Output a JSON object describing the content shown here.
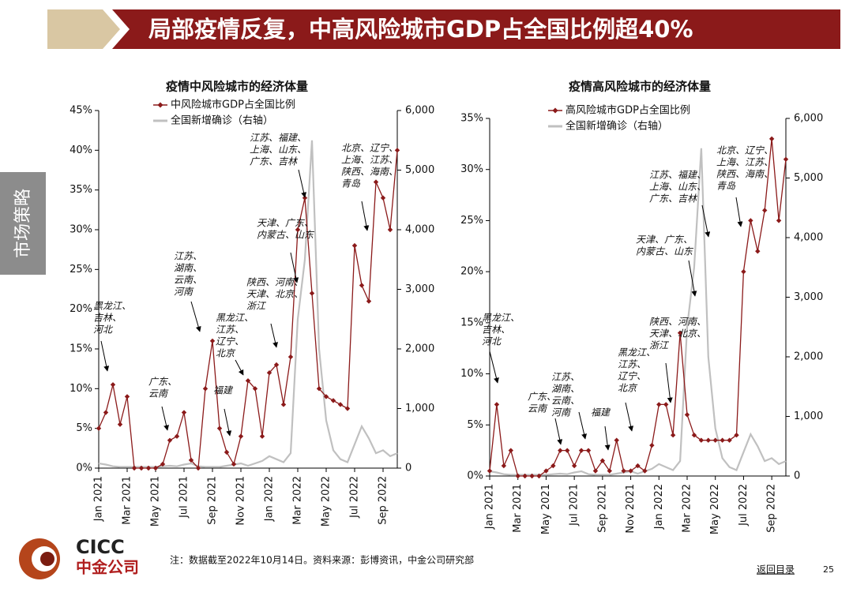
{
  "title": "局部疫情反复，中高风险城市GDP占全国比例超40%",
  "side_tab": "市场策略",
  "note": "注：数据截至2022年10月14日。资料来源：彭博资讯，中金公司研究部",
  "logo": {
    "en": "CICC",
    "zh": "中金公司"
  },
  "nav": "返回目录",
  "page": "25",
  "chart_data": [
    {
      "type": "line",
      "title": "疫情中风险城市的经济体量",
      "legend": "top-left",
      "categories": [
        "Jan 2021",
        null,
        null,
        null,
        "Mar 2021",
        null,
        null,
        null,
        "May 2021",
        null,
        null,
        null,
        "Jul 2021",
        null,
        null,
        null,
        "Sep 2021",
        null,
        null,
        null,
        "Nov 2021",
        null,
        null,
        null,
        "Jan 2022",
        null,
        null,
        null,
        "Mar 2022",
        null,
        null,
        null,
        "May 2022",
        null,
        null,
        null,
        "Jul 2022",
        null,
        null,
        null,
        "Sep 2022",
        null,
        null
      ],
      "series": [
        {
          "name": "中风险城市GDP占全国比例",
          "color": "#8b1a1a",
          "marker": "diamond",
          "values": [
            5,
            7,
            10.5,
            5.5,
            9,
            0,
            0,
            0,
            0,
            0.5,
            3.5,
            4,
            7,
            1,
            0,
            10,
            16,
            5,
            2,
            0.5,
            4,
            11,
            10,
            4,
            12,
            13,
            8,
            14,
            30,
            34,
            22,
            10,
            9,
            8.5,
            8,
            7.5,
            28,
            23,
            21,
            36,
            34,
            30,
            40
          ]
        },
        {
          "name": "全国新增确诊（右轴）",
          "color": "#c0c0c0",
          "axis": "y2",
          "values": [
            80,
            60,
            30,
            20,
            20,
            20,
            20,
            20,
            20,
            30,
            40,
            30,
            60,
            80,
            30,
            20,
            20,
            20,
            40,
            60,
            80,
            40,
            80,
            120,
            200,
            150,
            100,
            250,
            2500,
            3500,
            5500,
            2000,
            800,
            300,
            150,
            100,
            400,
            700,
            500,
            250,
            300,
            200,
            250
          ]
        }
      ],
      "ylim": [
        0,
        45
      ],
      "yticks": [
        {
          "value": 0,
          "label": "0%"
        },
        {
          "value": 5,
          "label": "5%"
        },
        {
          "value": 10,
          "label": "10%"
        },
        {
          "value": 15,
          "label": "15%"
        },
        {
          "value": 20,
          "label": "20%"
        },
        {
          "value": 25,
          "label": "25%"
        },
        {
          "value": 30,
          "label": "30%"
        },
        {
          "value": 35,
          "label": "35%"
        },
        {
          "value": 40,
          "label": "40%"
        },
        {
          "value": 45,
          "label": "45%"
        }
      ],
      "y2lim": [
        0,
        6000
      ],
      "y2ticks": [
        0,
        {
          "value": 1000,
          "label": "1,000"
        },
        {
          "value": 2000,
          "label": "2,000"
        },
        {
          "value": 3000,
          "label": "3,000"
        },
        {
          "value": 4000,
          "label": "4,000"
        },
        {
          "value": 5000,
          "label": "5,000"
        },
        {
          "value": 6000,
          "label": "6,000"
        }
      ],
      "annotations": [
        [
          "黑龙江、",
          "吉林、",
          "河北"
        ],
        [
          "广东、",
          "云南"
        ],
        [
          "江苏、",
          "湖南、",
          "云南、",
          "河南"
        ],
        [
          "福建"
        ],
        [
          "黑龙江、",
          "江苏、",
          "辽宁、",
          "北京"
        ],
        [
          "陕西、河南、",
          "天津、北京、",
          "浙江"
        ],
        [
          "江苏、福建、",
          "上海、山东、",
          "广东、吉林"
        ],
        [
          "天津、广东、",
          "内蒙古、山东"
        ],
        [
          "北京、辽宁、",
          "上海、江苏、",
          "陕西、海南、",
          "青岛"
        ]
      ]
    },
    {
      "type": "line",
      "title": "疫情高风险城市的经济体量",
      "legend": "top-left",
      "categories": [
        "Jan 2021",
        null,
        null,
        null,
        "Mar 2021",
        null,
        null,
        null,
        "May 2021",
        null,
        null,
        null,
        "Jul 2021",
        null,
        null,
        null,
        "Sep 2021",
        null,
        null,
        null,
        "Nov 2021",
        null,
        null,
        null,
        "Jan 2022",
        null,
        null,
        null,
        "Mar 2022",
        null,
        null,
        null,
        "May 2022",
        null,
        null,
        null,
        "Jul 2022",
        null,
        null,
        null,
        "Sep 2022",
        null,
        null
      ],
      "series": [
        {
          "name": "高风险城市GDP占全国比例",
          "color": "#8b1a1a",
          "marker": "diamond",
          "values": [
            0.5,
            7,
            1,
            2.5,
            0,
            0,
            0,
            0,
            0.5,
            1,
            2.5,
            2.5,
            1,
            2.5,
            2.5,
            0.5,
            1.5,
            0.5,
            3.5,
            0.5,
            0.5,
            1,
            0.5,
            3,
            7,
            7,
            4,
            14,
            6,
            4,
            3.5,
            3.5,
            3.5,
            3.5,
            3.5,
            4,
            20,
            25,
            22,
            26,
            33,
            25,
            31
          ]
        },
        {
          "name": "全国新增确诊（右轴）",
          "color": "#c0c0c0",
          "axis": "y2",
          "values": [
            80,
            60,
            30,
            20,
            20,
            20,
            20,
            20,
            20,
            30,
            40,
            30,
            60,
            80,
            30,
            20,
            20,
            20,
            40,
            60,
            80,
            40,
            80,
            120,
            200,
            150,
            100,
            250,
            2500,
            3500,
            5500,
            2000,
            800,
            300,
            150,
            100,
            400,
            700,
            500,
            250,
            300,
            200,
            250
          ]
        }
      ],
      "ylim": [
        0,
        35
      ],
      "yticks": [
        {
          "value": 0,
          "label": "0%"
        },
        {
          "value": 5,
          "label": "5%"
        },
        {
          "value": 10,
          "label": "10%"
        },
        {
          "value": 15,
          "label": "15%"
        },
        {
          "value": 20,
          "label": "20%"
        },
        {
          "value": 25,
          "label": "25%"
        },
        {
          "value": 30,
          "label": "30%"
        },
        {
          "value": 35,
          "label": "35%"
        }
      ],
      "y2lim": [
        0,
        6000
      ],
      "y2ticks": [
        0,
        {
          "value": 1000,
          "label": "1,000"
        },
        {
          "value": 2000,
          "label": "2,000"
        },
        {
          "value": 3000,
          "label": "3,000"
        },
        {
          "value": 4000,
          "label": "4,000"
        },
        {
          "value": 5000,
          "label": "5,000"
        },
        {
          "value": 6000,
          "label": "6,000"
        }
      ],
      "annotations": [
        [
          "黑龙江、",
          "吉林、",
          "河北"
        ],
        [
          "广东、",
          "云南"
        ],
        [
          "江苏、",
          "湖南、",
          "云南、",
          "河南"
        ],
        [
          "福建"
        ],
        [
          "黑龙江、",
          "江苏、",
          "辽宁、",
          "北京"
        ],
        [
          "陕西、河南、",
          "天津、北京、",
          "浙江"
        ],
        [
          "江苏、福建、",
          "上海、山东、",
          "广东、吉林"
        ],
        [
          "天津、广东、",
          "内蒙古、山东"
        ],
        [
          "北京、辽宁、",
          "上海、江苏、",
          "陕西、海南、",
          "青岛"
        ]
      ]
    }
  ]
}
